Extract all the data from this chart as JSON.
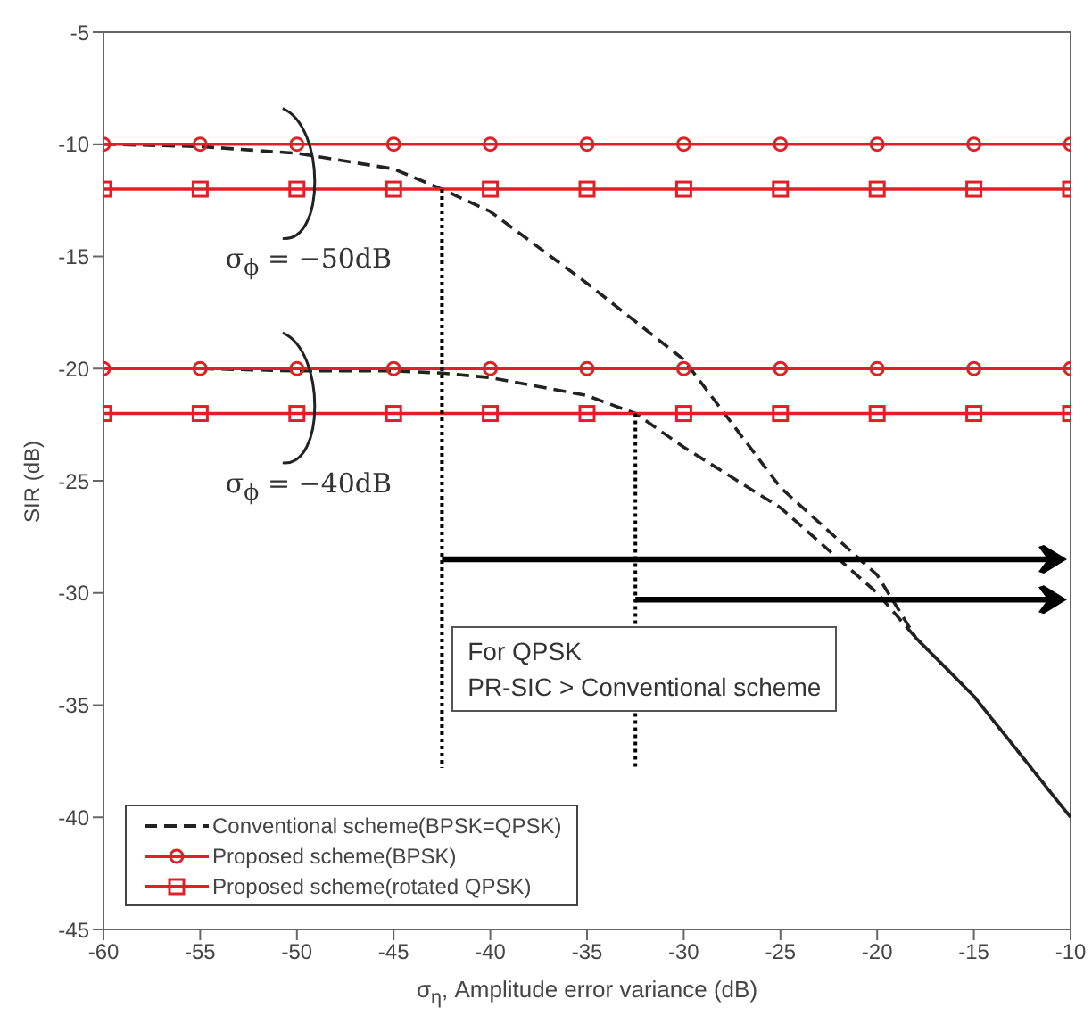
{
  "chart_data": {
    "type": "line",
    "xlabel": "σ$_{η}$, Amplitude error variance (dB)",
    "ylabel": "SIR (dB)",
    "xlim": [
      -60,
      -10
    ],
    "xticks": [
      -60,
      -55,
      -50,
      -45,
      -40,
      -35,
      -30,
      -25,
      -20,
      -15,
      -10
    ],
    "ylim": [
      -45,
      -5
    ],
    "yticks": [
      -45,
      -40,
      -35,
      -30,
      -25,
      -20,
      -15,
      -10,
      -5
    ],
    "grid": false,
    "legend": "bottom left",
    "annotations": [
      "σ$_{ϕ}$ = −50dB",
      "σ$_{ϕ}$ = −40dB",
      "For QPSK\nPR-SIC > Conventional scheme"
    ],
    "series": [
      {
        "name": "Conventional scheme(BPSK=QPSK)",
        "color": "#222222",
        "line_style": "dashed",
        "marker": "none",
        "x": [
          -60,
          -55,
          -50,
          -45,
          -42.5,
          -40,
          -35,
          -30,
          -25,
          -20,
          -18,
          -15,
          -10
        ],
        "values": [
          -10,
          -10.1,
          -10.4,
          -11.1,
          -12,
          -13,
          -16.2,
          -19.6,
          -25.3,
          -29.2,
          -32,
          -34.6,
          -40
        ]
      },
      {
        "color": "#222222",
        "line_style": "dashed",
        "marker": "none",
        "x": [
          -60,
          -55,
          -50,
          -45,
          -42.5,
          -40,
          -35,
          -32.5,
          -30,
          -25,
          -20,
          -18,
          -15,
          -10
        ],
        "values": [
          -20,
          -20,
          -20.1,
          -20.1,
          -20.2,
          -20.4,
          -21.2,
          -22,
          -23.5,
          -26.2,
          -30,
          -32,
          -34.6,
          -40
        ]
      },
      {
        "name": "Proposed scheme(BPSK)",
        "color": "#e41e26",
        "line_style": "solid",
        "marker": "circle",
        "x": [
          -60,
          -55,
          -50,
          -45,
          -40,
          -35,
          -30,
          -25,
          -20,
          -15,
          -10
        ],
        "values": [
          -10,
          -10,
          -10,
          -10,
          -10,
          -10,
          -10,
          -10,
          -10,
          -10,
          -10
        ]
      },
      {
        "color": "#e41e26",
        "line_style": "solid",
        "marker": "circle",
        "x": [
          -60,
          -55,
          -50,
          -45,
          -40,
          -35,
          -30,
          -25,
          -20,
          -15,
          -10
        ],
        "values": [
          -20,
          -20,
          -20,
          -20,
          -20,
          -20,
          -20,
          -20,
          -20,
          -20,
          -20
        ]
      },
      {
        "name": "Proposed scheme(rotated QPSK)",
        "color": "#e41e26",
        "line_style": "solid",
        "marker": "square",
        "x": [
          -60,
          -55,
          -50,
          -45,
          -40,
          -35,
          -30,
          -25,
          -20,
          -15,
          -10
        ],
        "values": [
          -12,
          -12,
          -12,
          -12,
          -12,
          -12,
          -12,
          -12,
          -12,
          -12,
          -12
        ]
      },
      {
        "color": "#e41e26",
        "line_style": "solid",
        "marker": "square",
        "x": [
          -60,
          -55,
          -50,
          -45,
          -40,
          -35,
          -30,
          -25,
          -20,
          -15,
          -10
        ],
        "values": [
          -22,
          -22,
          -22,
          -22,
          -22,
          -22,
          -22,
          -22,
          -22,
          -22,
          -22
        ]
      },
      {
        "color": "#000000",
        "line_style": "dotted",
        "marker": "none",
        "x": [
          -42.5,
          -42.5
        ],
        "values": [
          -12,
          -37.8
        ]
      },
      {
        "color": "#000000",
        "line_style": "dotted",
        "marker": "none",
        "x": [
          -32.5,
          -32.5
        ],
        "values": [
          -22,
          -37.8
        ]
      }
    ]
  }
}
